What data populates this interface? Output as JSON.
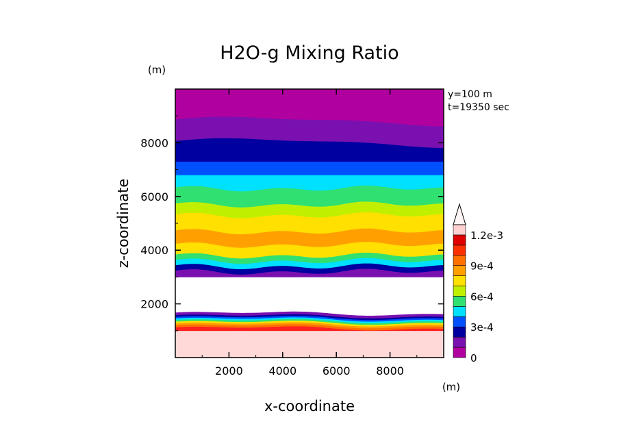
{
  "chart_data": {
    "type": "heatmap",
    "title": "H2O-g Mixing Ratio",
    "xlabel": "x-coordinate",
    "ylabel": "z-coordinate",
    "x_unit": "(m)",
    "y_unit": "(m)",
    "annotations": [
      "y=100 m",
      "t=19350 sec"
    ],
    "xlim": [
      0,
      10000
    ],
    "ylim": [
      0,
      10000
    ],
    "xticks": [
      2000,
      4000,
      6000,
      8000
    ],
    "yticks": [
      2000,
      4000,
      6000,
      8000
    ],
    "xtick_labels": [
      "2000",
      "4000",
      "6000",
      "8000"
    ],
    "ytick_labels": [
      "2000",
      "4000",
      "6000",
      "8000"
    ],
    "colorbar": {
      "levels": [
        0,
        0.0001,
        0.0002,
        0.0003,
        0.0004,
        0.0005,
        0.0006,
        0.0007,
        0.0008,
        0.0009,
        0.001,
        0.0011,
        0.0012
      ],
      "colors": [
        "#b000a0",
        "#7a10b0",
        "#0000a0",
        "#0050ff",
        "#00e0ff",
        "#30e070",
        "#c0f000",
        "#ffe000",
        "#ffa000",
        "#ff7000",
        "#ff3000",
        "#e00000",
        "#ffd0d0"
      ],
      "tick_labels": [
        "0",
        "3e-4",
        "6e-4",
        "9e-4",
        "1.2e-3"
      ],
      "tick_values": [
        0,
        0.0003,
        0.0006,
        0.0009,
        0.0012
      ],
      "overflow_triangle": true
    },
    "bands": [
      {
        "z0": 0,
        "z1": 1000,
        "color": "#ffd8d8",
        "wave": 0
      },
      {
        "z0": 1000,
        "z1": 1100,
        "color": "#ff2020",
        "wave": 1
      },
      {
        "z0": 1100,
        "z1": 1180,
        "color": "#ff7000",
        "wave": 1
      },
      {
        "z0": 1180,
        "z1": 1250,
        "color": "#ffa000",
        "wave": 1
      },
      {
        "z0": 1250,
        "z1": 1310,
        "color": "#ffe000",
        "wave": 1
      },
      {
        "z0": 1310,
        "z1": 1370,
        "color": "#30e070",
        "wave": 1
      },
      {
        "z0": 1370,
        "z1": 1430,
        "color": "#00e0ff",
        "wave": 1
      },
      {
        "z0": 1430,
        "z1": 1490,
        "color": "#0050ff",
        "wave": 1
      },
      {
        "z0": 1490,
        "z1": 1550,
        "color": "#0000a0",
        "wave": 1
      },
      {
        "z0": 1550,
        "z1": 1650,
        "color": "#7a10b0",
        "wave": 1
      },
      {
        "z0": 1650,
        "z1": 3000,
        "color": "#ffffff",
        "wave": 0
      },
      {
        "z0": 3000,
        "z1": 3200,
        "color": "#7a10b0",
        "wave": 2
      },
      {
        "z0": 3200,
        "z1": 3400,
        "color": "#0000a0",
        "wave": 2
      },
      {
        "z0": 3400,
        "z1": 3600,
        "color": "#00e0ff",
        "wave": 2
      },
      {
        "z0": 3600,
        "z1": 3800,
        "color": "#30e070",
        "wave": 2
      },
      {
        "z0": 3800,
        "z1": 4200,
        "color": "#ffe000",
        "wave": 2
      },
      {
        "z0": 4200,
        "z1": 4700,
        "color": "#ffa000",
        "wave": 2
      },
      {
        "z0": 4700,
        "z1": 5300,
        "color": "#ffe000",
        "wave": 2
      },
      {
        "z0": 5300,
        "z1": 5700,
        "color": "#c0f000",
        "wave": 2
      },
      {
        "z0": 5700,
        "z1": 6300,
        "color": "#30e070",
        "wave": 2
      },
      {
        "z0": 6300,
        "z1": 6800,
        "color": "#00e0ff",
        "wave": 0
      },
      {
        "z0": 6800,
        "z1": 7300,
        "color": "#0050ff",
        "wave": 0
      },
      {
        "z0": 7300,
        "z1": 8000,
        "color": "#0000a0",
        "wave": 3
      },
      {
        "z0": 8000,
        "z1": 8800,
        "color": "#7a10b0",
        "wave": 3
      },
      {
        "z0": 8800,
        "z1": 10000,
        "color": "#b000a0",
        "wave": 0
      }
    ]
  }
}
